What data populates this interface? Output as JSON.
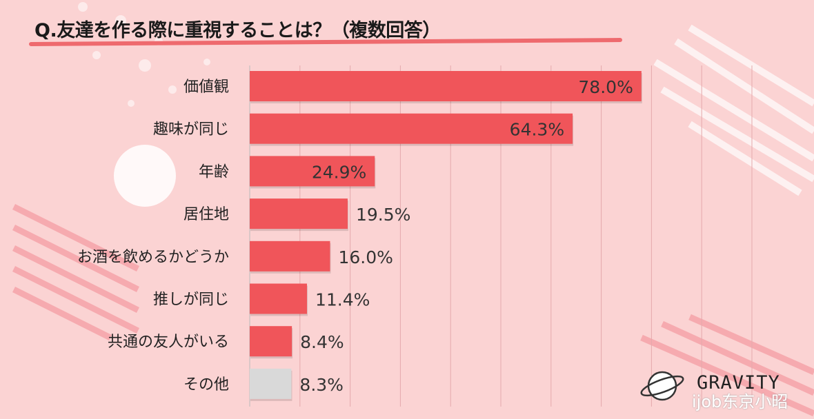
{
  "chart_data": {
    "type": "bar",
    "orientation": "horizontal",
    "title": "Q.友達を作る際に重視することは？（複数回答）",
    "categories": [
      "価値観",
      "趣味が同じ",
      "年齢",
      "居住地",
      "お酒を飲めるかどうか",
      "推しが同じ",
      "共通の友人がいる",
      "その他"
    ],
    "values": [
      78.0,
      64.3,
      24.9,
      19.5,
      16.0,
      11.4,
      8.4,
      8.3
    ],
    "value_labels": [
      "78.0%",
      "64.3%",
      "24.9%",
      "19.5%",
      "16.0%",
      "11.4%",
      "8.4%",
      "8.3%"
    ],
    "xlim": [
      0,
      100
    ],
    "grid": true,
    "colors": {
      "bar": "#f0555a",
      "other_bar": "#d9d9d9",
      "background": "#fbd3d3"
    }
  },
  "brand": {
    "logo_text": "GRAVITY",
    "logo_icon": "planet-icon"
  },
  "watermark": "ijob东京小昭"
}
